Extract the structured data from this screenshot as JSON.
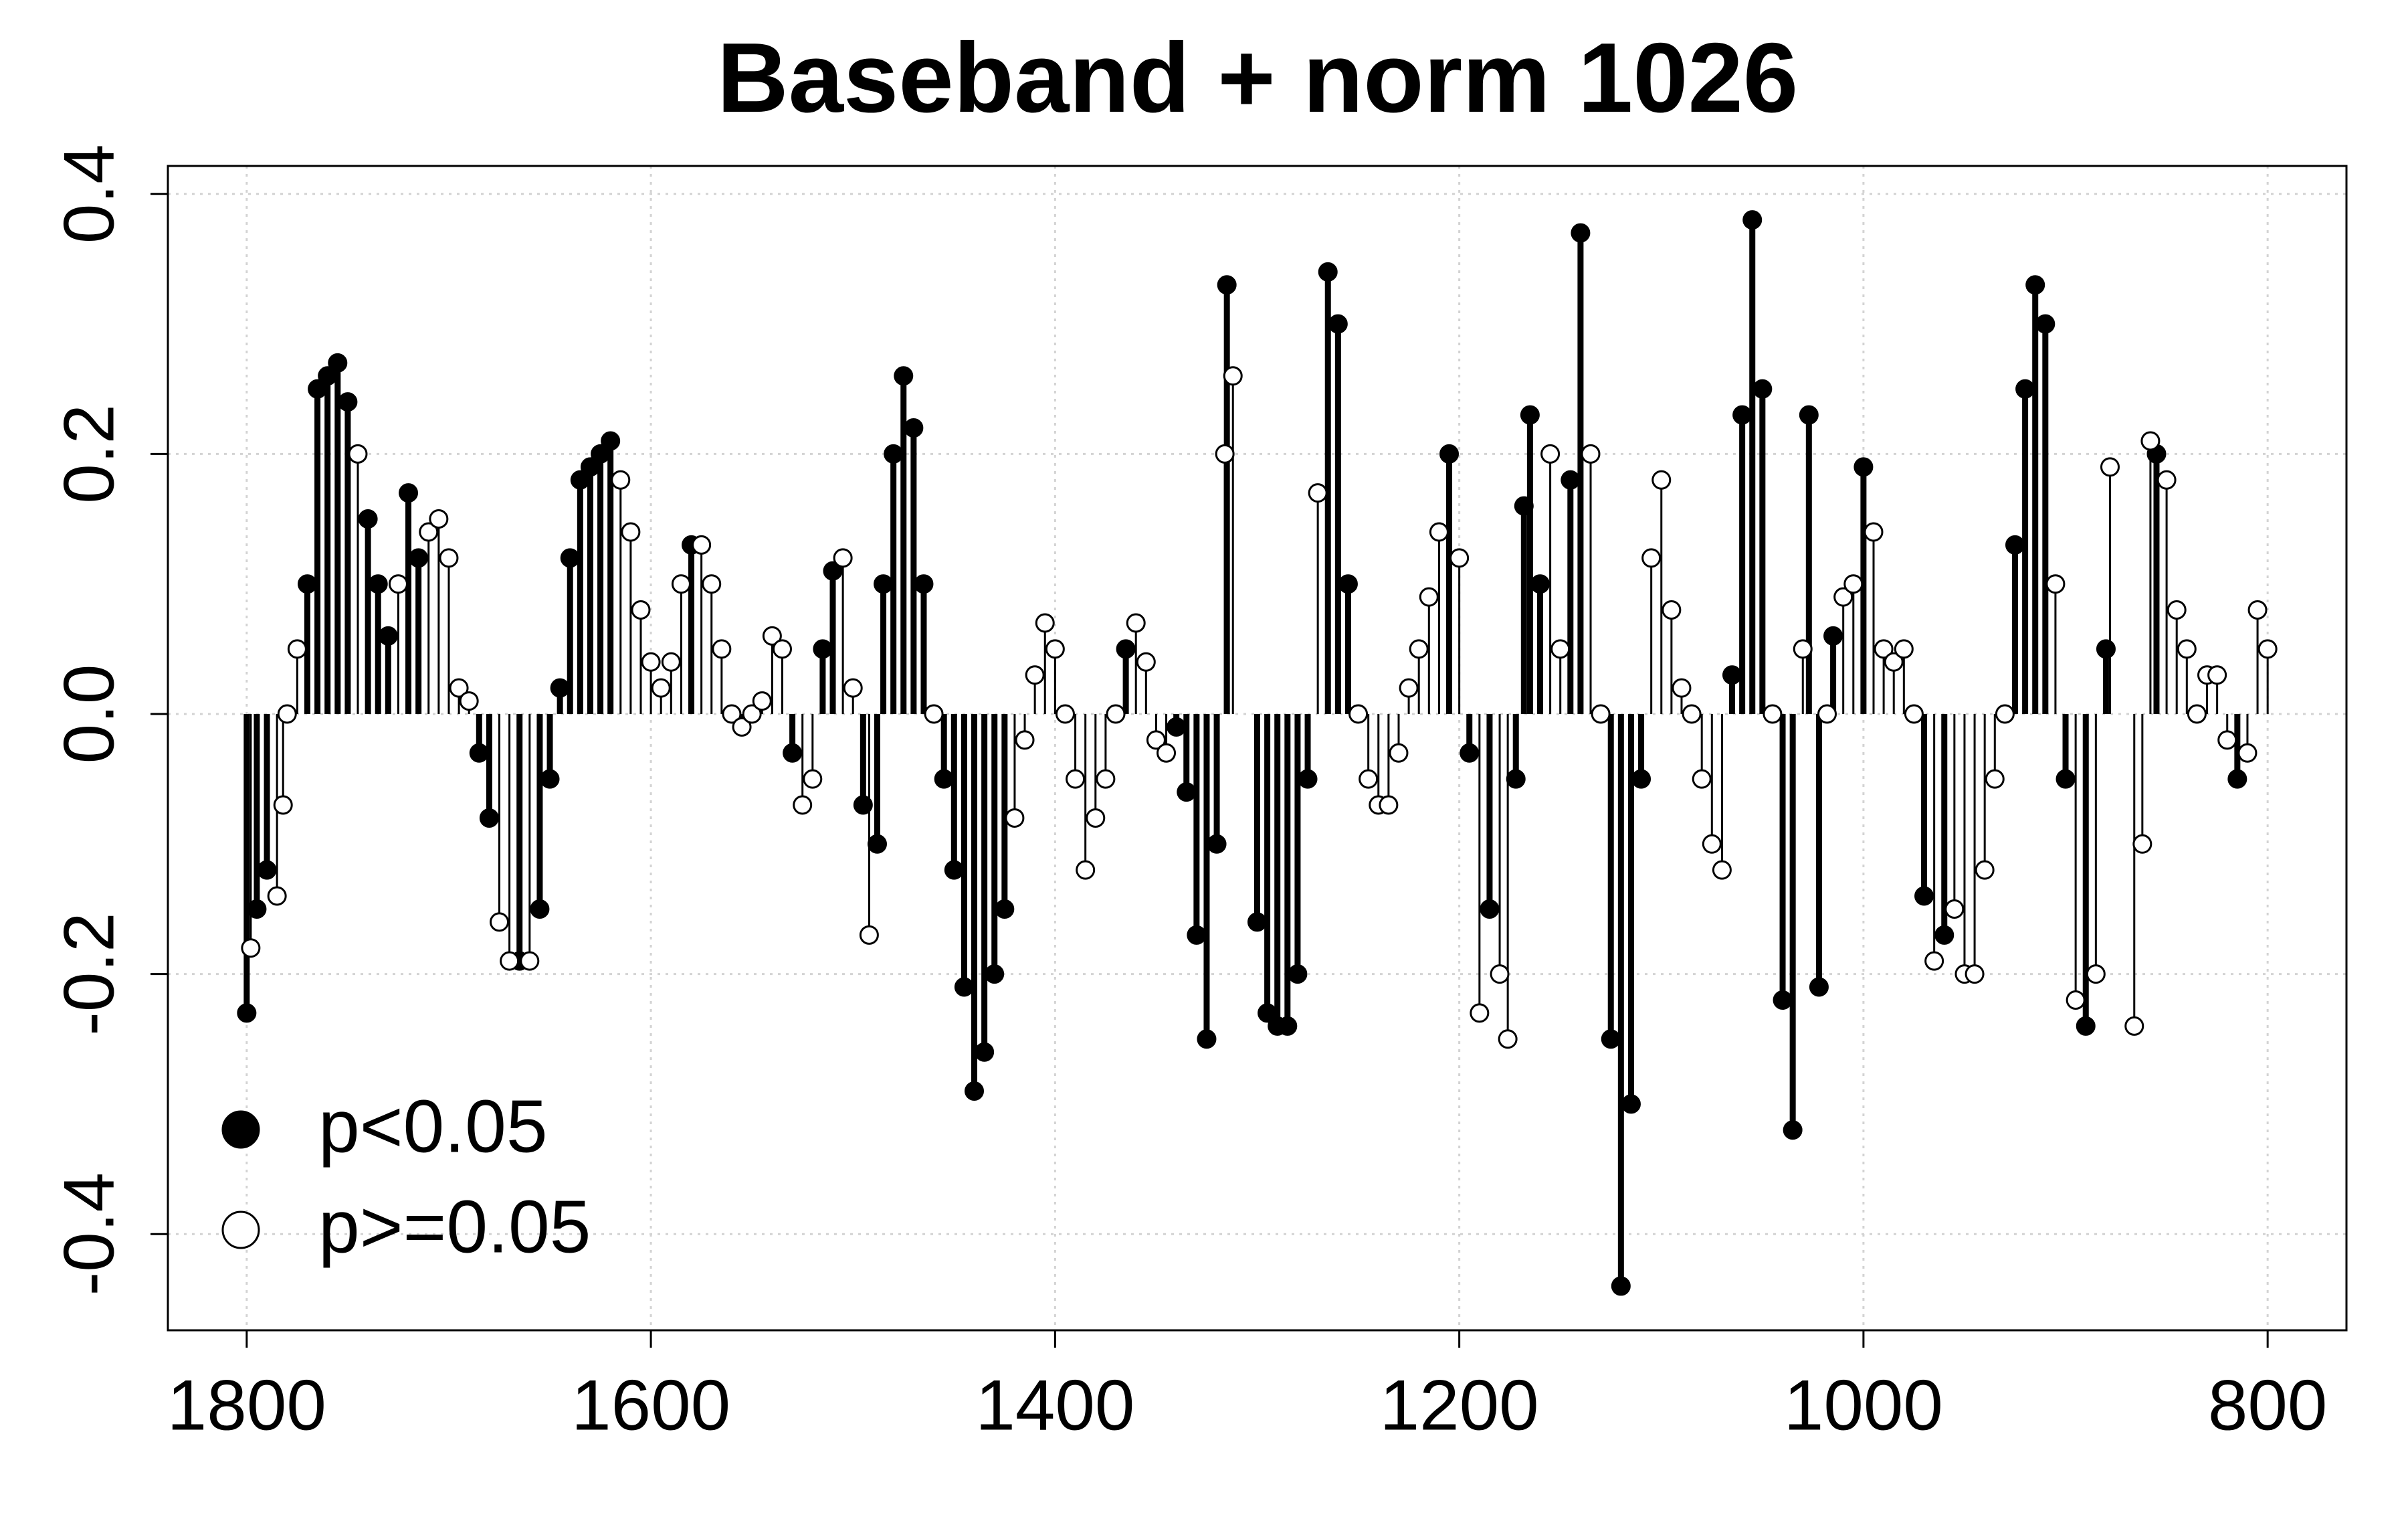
{
  "chart_data": {
    "type": "stem",
    "title": "Baseband + norm 1026",
    "xlim": [
      1839,
      761
    ],
    "ylim": [
      -0.474,
      0.4215
    ],
    "xticks": [
      1800,
      1600,
      1400,
      1200,
      1000,
      800
    ],
    "yticks": [
      -0.4,
      -0.2,
      {
        "value": 0,
        "label": "0.0"
      },
      0.2,
      0.4
    ],
    "grid": true,
    "legend": "bottom-left",
    "series": [
      {
        "name": "p<0.05",
        "color": "#000000",
        "filled": true,
        "x": [
          1800,
          1795,
          1790,
          1770,
          1765,
          1760,
          1755,
          1750,
          1740,
          1735,
          1730,
          1720,
          1715,
          1685,
          1680,
          1665,
          1655,
          1650,
          1645,
          1640,
          1635,
          1630,
          1625,
          1620,
          1580,
          1530,
          1515,
          1510,
          1495,
          1488,
          1485,
          1480,
          1475,
          1470,
          1465,
          1455,
          1450,
          1445,
          1440,
          1435,
          1430,
          1425,
          1365,
          1340,
          1335,
          1330,
          1325,
          1320,
          1315,
          1300,
          1295,
          1290,
          1285,
          1280,
          1275,
          1265,
          1260,
          1255,
          1205,
          1195,
          1185,
          1172,
          1168,
          1165,
          1160,
          1145,
          1140,
          1125,
          1120,
          1115,
          1110,
          1065,
          1060,
          1055,
          1050,
          1040,
          1035,
          1027,
          1022,
          1015,
          1000,
          970,
          960,
          925,
          920,
          915,
          910,
          900,
          890,
          880,
          855,
          815
        ],
        "values": [
          -0.23,
          -0.15,
          -0.12,
          0.1,
          0.25,
          0.26,
          0.27,
          0.24,
          0.15,
          0.1,
          0.06,
          0.17,
          0.12,
          -0.03,
          -0.08,
          -0.19,
          -0.15,
          -0.05,
          0.02,
          0.12,
          0.18,
          0.19,
          0.2,
          0.21,
          0.13,
          -0.03,
          0.05,
          0.11,
          -0.07,
          -0.1,
          0.1,
          0.2,
          0.26,
          0.22,
          0.1,
          -0.05,
          -0.12,
          -0.21,
          -0.29,
          -0.26,
          -0.2,
          -0.15,
          0.05,
          -0.01,
          -0.06,
          -0.17,
          -0.25,
          -0.1,
          0.33,
          -0.16,
          -0.23,
          -0.24,
          -0.24,
          -0.2,
          -0.05,
          0.34,
          0.3,
          0.1,
          0.2,
          -0.03,
          -0.15,
          -0.05,
          0.16,
          0.23,
          0.1,
          0.18,
          0.37,
          -0.25,
          -0.44,
          -0.3,
          -0.05,
          0.03,
          0.23,
          0.38,
          0.25,
          -0.22,
          -0.32,
          0.23,
          -0.21,
          0.06,
          0.19,
          -0.14,
          -0.17,
          0.13,
          0.25,
          0.33,
          0.3,
          -0.05,
          -0.24,
          0.05,
          0.2,
          -0.05
        ]
      },
      {
        "name": "p>=0.05",
        "color": "#000000",
        "filled": false,
        "x": [
          1798,
          1785,
          1782,
          1780,
          1775,
          1745,
          1725,
          1710,
          1705,
          1700,
          1695,
          1690,
          1675,
          1670,
          1660,
          1615,
          1610,
          1605,
          1600,
          1595,
          1590,
          1585,
          1575,
          1570,
          1565,
          1560,
          1555,
          1550,
          1545,
          1540,
          1535,
          1525,
          1520,
          1505,
          1500,
          1492,
          1460,
          1420,
          1415,
          1410,
          1405,
          1400,
          1395,
          1390,
          1385,
          1380,
          1375,
          1370,
          1360,
          1355,
          1350,
          1345,
          1316,
          1312,
          1270,
          1250,
          1245,
          1240,
          1235,
          1230,
          1225,
          1220,
          1215,
          1210,
          1200,
          1190,
          1180,
          1176,
          1155,
          1150,
          1135,
          1130,
          1105,
          1100,
          1095,
          1090,
          1085,
          1080,
          1075,
          1070,
          1045,
          1030,
          1018,
          1010,
          1005,
          995,
          990,
          985,
          980,
          975,
          965,
          955,
          950,
          945,
          940,
          935,
          930,
          905,
          895,
          885,
          878,
          866,
          862,
          858,
          850,
          845,
          840,
          835,
          830,
          825,
          820,
          810,
          805,
          800
        ],
        "values": [
          -0.18,
          -0.14,
          -0.07,
          0.0,
          0.05,
          0.2,
          0.1,
          0.14,
          0.15,
          0.12,
          0.02,
          0.01,
          -0.16,
          -0.19,
          -0.19,
          0.18,
          0.14,
          0.08,
          0.04,
          0.02,
          0.04,
          0.1,
          0.13,
          0.1,
          0.05,
          0.0,
          -0.01,
          0.0,
          0.01,
          0.06,
          0.05,
          -0.07,
          -0.05,
          0.12,
          0.02,
          -0.17,
          0.0,
          -0.08,
          -0.02,
          0.03,
          0.07,
          0.05,
          0.0,
          -0.05,
          -0.12,
          -0.08,
          -0.05,
          0.0,
          0.07,
          0.04,
          -0.02,
          -0.03,
          0.2,
          0.26,
          0.17,
          0.0,
          -0.05,
          -0.07,
          -0.07,
          -0.03,
          0.02,
          0.05,
          0.09,
          0.14,
          0.12,
          -0.23,
          -0.2,
          -0.25,
          0.2,
          0.05,
          0.2,
          0.0,
          0.12,
          0.18,
          0.08,
          0.02,
          0.0,
          -0.05,
          -0.1,
          -0.12,
          0.0,
          0.05,
          0.0,
          0.09,
          0.1,
          0.14,
          0.05,
          0.04,
          0.05,
          0.0,
          -0.19,
          -0.15,
          -0.2,
          -0.2,
          -0.12,
          -0.05,
          0.0,
          0.1,
          -0.22,
          -0.2,
          0.19,
          -0.24,
          -0.1,
          0.21,
          0.18,
          0.08,
          0.05,
          0.0,
          0.03,
          0.03,
          -0.02,
          -0.03,
          0.08,
          0.05
        ]
      }
    ]
  }
}
